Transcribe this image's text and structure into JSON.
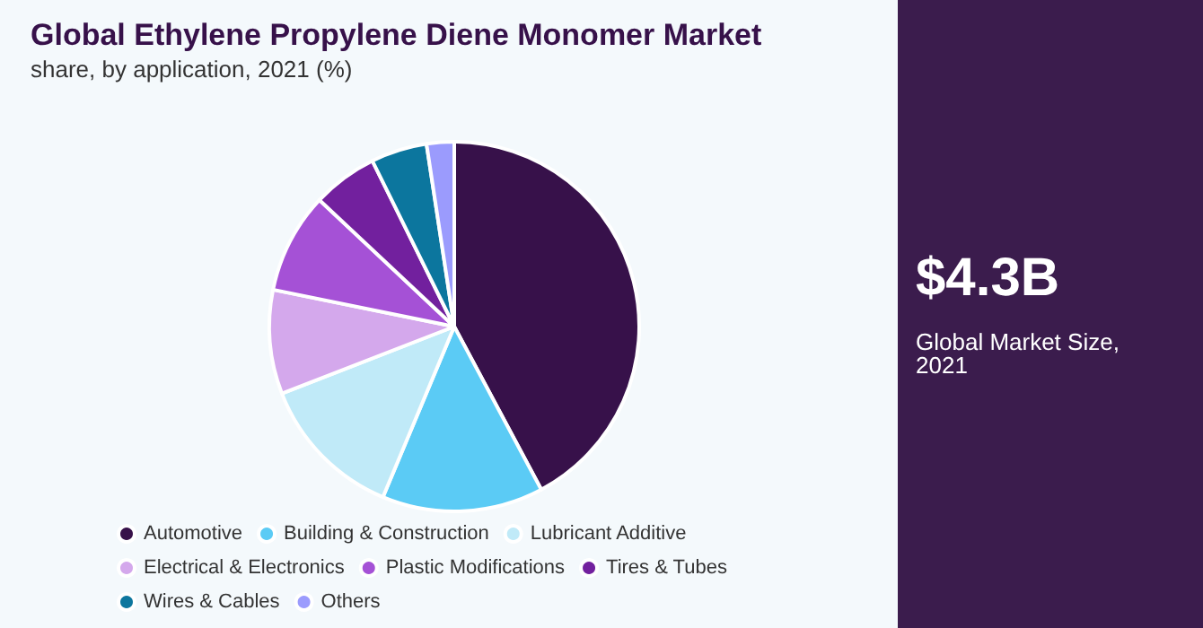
{
  "chart_data": {
    "type": "pie",
    "title": "Global Ethylene Propylene Diene Monomer Market",
    "subtitle": "share, by application, 2021 (%)",
    "categories": [
      "Automotive",
      "Building & Construction",
      "Lubricant Additive",
      "Electrical & Electronics",
      "Plastic Modifications",
      "Tires & Tubes",
      "Wires & Cables",
      "Others"
    ],
    "values": [
      42.2,
      14.1,
      12.8,
      9.1,
      8.8,
      5.7,
      4.9,
      2.4
    ],
    "colors": [
      "#37114a",
      "#5bcbf5",
      "#c0eaf8",
      "#d4a8ec",
      "#a551d6",
      "#72209e",
      "#0c769e",
      "#9b9bfd"
    ],
    "legend": "bottom",
    "annotations": [
      "$4.3B",
      "Global Market Size, 2021"
    ]
  }
}
